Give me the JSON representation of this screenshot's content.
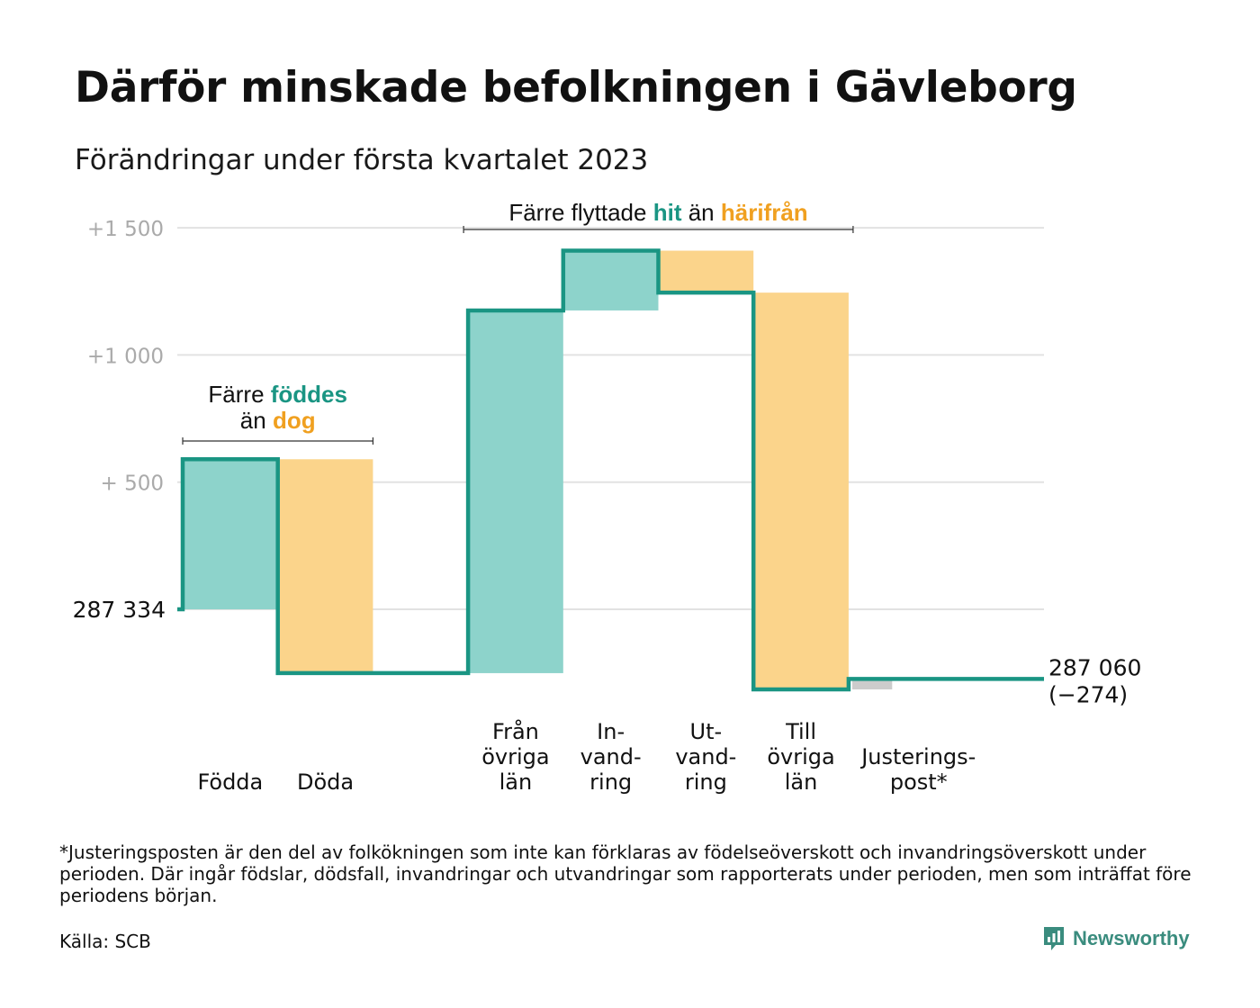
{
  "chart_data": {
    "type": "waterfall",
    "title": "Därför minskade befolkningen i Gävleborg",
    "subtitle": "Förändringar under första kvartalet 2023",
    "start_label": "287 334",
    "end_label_line1": "287 060",
    "end_label_line2": "(−274)",
    "y_ticks": [
      {
        "value": 1500,
        "label": "+1 500"
      },
      {
        "value": 1000,
        "label": "+1 000"
      },
      {
        "value": 500,
        "label": "+ 500"
      },
      {
        "value": 0,
        "label": ""
      }
    ],
    "ylim": [
      -300,
      1550
    ],
    "gap_after": [
      1
    ],
    "steps": [
      {
        "label_lines": [
          "Födda"
        ],
        "value": 590,
        "kind": "in"
      },
      {
        "label_lines": [
          "Döda"
        ],
        "value": -841,
        "kind": "out"
      },
      {
        "label_lines": [
          "Från",
          "övriga",
          "län"
        ],
        "value": 1426,
        "kind": "in"
      },
      {
        "label_lines": [
          "In-",
          "vand-",
          "ring"
        ],
        "value": 235,
        "kind": "in"
      },
      {
        "label_lines": [
          "Ut-",
          "vand-",
          "ring"
        ],
        "value": -165,
        "kind": "out"
      },
      {
        "label_lines": [
          "Till",
          "övriga",
          "län"
        ],
        "value": -1560,
        "kind": "out"
      },
      {
        "label_lines": [
          "Justerings-",
          "post*"
        ],
        "value": 41,
        "kind": "adjust"
      }
    ],
    "annotations": [
      {
        "line1_prefix": "Färre ",
        "line1_hit": "föddes",
        "line1_mid": "",
        "line1_out": "",
        "line2_prefix": "än ",
        "line2_out": "dog"
      },
      {
        "line1_prefix": "Färre flyttade ",
        "line1_hit": "hit",
        "line1_mid": " än ",
        "line1_out": "härifrån",
        "line2_prefix": "",
        "line2_out": ""
      }
    ],
    "colors": {
      "in": "#8dd3cb",
      "out": "#fbd48b",
      "adjust": "#cccccc",
      "line": "#1a9583",
      "hit_text": "#1a9583",
      "out_text": "#f0a020",
      "grid": "#e2e2e2",
      "tick": "#aaaaaa"
    }
  },
  "footnote": "*Justeringsposten är den del av folkökningen som inte kan förklaras av födelseöverskott och invandringsöverskott under perioden. Där ingår födslar, dödsfall, invandringar och utvandringar som rapporterats under perioden, men som inträffat före periodens början.",
  "source": "Källa: SCB",
  "brand": "Newsworthy"
}
